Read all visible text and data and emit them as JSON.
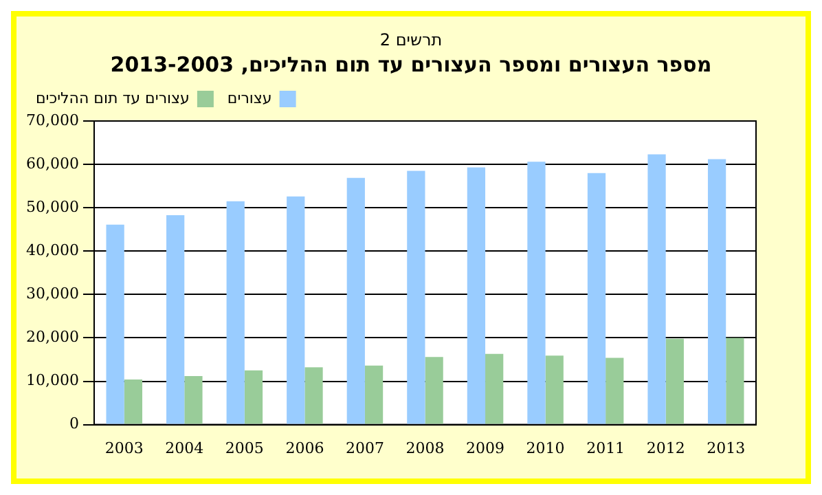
{
  "chart_data": {
    "type": "bar",
    "title": "מספר העצורים ומספר העצורים עד תום ההליכים, 2013-2003",
    "subtitle": "תרשים 2",
    "categories": [
      "2003",
      "2004",
      "2005",
      "2006",
      "2007",
      "2008",
      "2009",
      "2010",
      "2011",
      "2012",
      "2013"
    ],
    "series": [
      {
        "name": "עצורים",
        "color": "#99ccff",
        "values": [
          46100,
          48300,
          51500,
          52600,
          56900,
          58500,
          59300,
          60600,
          58000,
          62300,
          61200
        ]
      },
      {
        "name": "עצורים עד תום ההליכים",
        "color": "#99cc99",
        "values": [
          10400,
          11200,
          12500,
          13200,
          13600,
          15600,
          16300,
          15900,
          15400,
          19800,
          20000
        ]
      }
    ],
    "ylim": [
      0,
      70000
    ],
    "yticks": [
      0,
      {
        "value": 10000,
        "label": "10,000"
      },
      {
        "value": 20000,
        "label": "20,000"
      },
      {
        "value": 30000,
        "label": "30,000"
      },
      {
        "value": 40000,
        "label": "40,000"
      },
      {
        "value": 50000,
        "label": "50,000"
      },
      {
        "value": 60000,
        "label": "60,000"
      },
      {
        "value": 70000,
        "label": "70,000"
      }
    ],
    "grid": "y",
    "legend": "top left"
  }
}
